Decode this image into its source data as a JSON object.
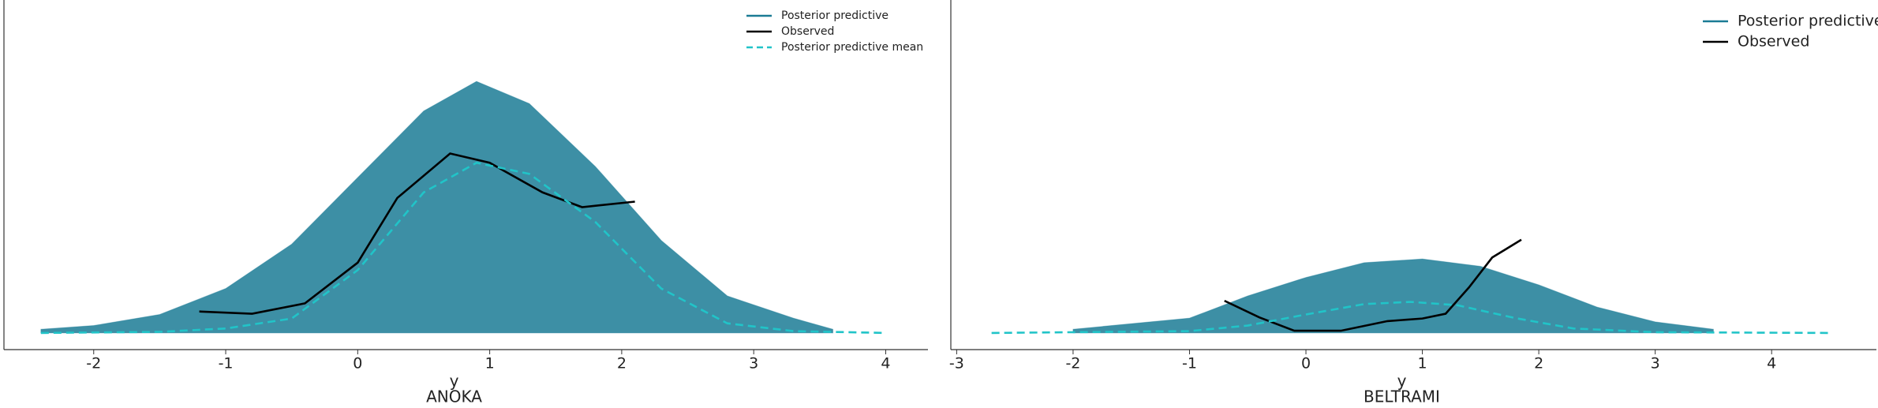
{
  "chart_data": [
    {
      "type": "line",
      "title": "ANOKA",
      "xlabel": "y",
      "xlim": [
        -2.68,
        4.32
      ],
      "ylim": [
        -0.045,
        0.9
      ],
      "xticks": [
        -2,
        -1,
        0,
        1,
        2,
        3,
        4
      ],
      "legend_loc": "upper right",
      "legend_size": "small",
      "series": [
        {
          "name": "Posterior predictive",
          "color": "#1b7b95",
          "style": "band",
          "x": [
            -2.4,
            -2,
            -1.5,
            -1,
            -0.5,
            0,
            0.5,
            0.9,
            1.3,
            1.8,
            2.3,
            2.8,
            3.3,
            3.6
          ],
          "values": [
            0.01,
            0.02,
            0.05,
            0.12,
            0.24,
            0.42,
            0.6,
            0.68,
            0.62,
            0.45,
            0.25,
            0.1,
            0.04,
            0.01
          ]
        },
        {
          "name": "Observed",
          "color": "#000000",
          "style": "solid",
          "x": [
            -1.2,
            -0.8,
            -0.4,
            0,
            0.3,
            0.7,
            1.0,
            1.4,
            1.7,
            2.1
          ],
          "values": [
            0.058,
            0.052,
            0.08,
            0.19,
            0.365,
            0.485,
            0.46,
            0.38,
            0.34,
            0.355
          ]
        },
        {
          "name": "Posterior predictive mean",
          "color": "#21c4c8",
          "style": "dashed",
          "x": [
            -2.4,
            -1.5,
            -1,
            -0.5,
            0,
            0.5,
            0.9,
            1.3,
            1.8,
            2.3,
            2.8,
            3.3,
            4
          ],
          "values": [
            0,
            0.003,
            0.012,
            0.039,
            0.17,
            0.38,
            0.46,
            0.43,
            0.3,
            0.12,
            0.026,
            0.005,
            0
          ]
        }
      ]
    },
    {
      "type": "line",
      "title": "BELTRAMI",
      "xlabel": "y",
      "xlim": [
        -3.05,
        4.9
      ],
      "ylim": [
        -0.045,
        0.9
      ],
      "xticks": [
        -3,
        -2,
        -1,
        0,
        1,
        2,
        3,
        4
      ],
      "legend_loc": "upper right",
      "legend_size": "large",
      "series": [
        {
          "name": "Posterior predictive",
          "color": "#1b7b95",
          "style": "band",
          "x": [
            -2,
            -1,
            -0.5,
            0,
            0.5,
            1,
            1.5,
            2,
            2.5,
            3,
            3.5
          ],
          "values": [
            0.01,
            0.04,
            0.1,
            0.15,
            0.19,
            0.2,
            0.18,
            0.13,
            0.07,
            0.03,
            0.01
          ]
        },
        {
          "name": "Observed",
          "color": "#000000",
          "style": "solid",
          "x": [
            -0.7,
            -0.4,
            -0.1,
            0.3,
            0.7,
            1.0,
            1.2,
            1.4,
            1.6,
            1.85
          ],
          "values": [
            0.087,
            0.042,
            0.006,
            0.006,
            0.032,
            0.039,
            0.052,
            0.123,
            0.204,
            0.252
          ]
        },
        {
          "name": "Posterior predictive mean",
          "color": "#21c4c8",
          "style": "dashed",
          "in_legend": false,
          "x": [
            -2.7,
            -1,
            -0.5,
            0,
            0.5,
            0.9,
            1.3,
            1.8,
            2.3,
            3,
            4.5
          ],
          "values": [
            0,
            0.005,
            0.02,
            0.05,
            0.078,
            0.084,
            0.075,
            0.04,
            0.012,
            0.002,
            0
          ]
        }
      ]
    }
  ]
}
